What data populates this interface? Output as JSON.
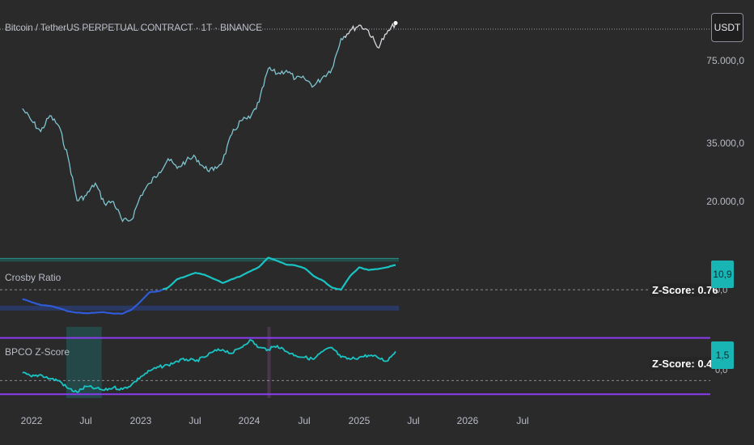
{
  "header": {
    "title": "Bitcoin / TetherUS PERPETUAL CONTRACT · 1T · BINANCE",
    "currency_button": "USDT"
  },
  "price_axis": {
    "labels": [
      "75.000,0",
      "35.000,0",
      "20.000,0"
    ]
  },
  "pane_crosby": {
    "label": "Crosby Ratio",
    "zscore_text": "Z-Score: 0.76",
    "badge_value": "10,9",
    "badge_sub": "0,0"
  },
  "pane_bpco": {
    "label": "BPCO Z-Score",
    "zscore_text": "Z-Score: 0.43",
    "badge_value": "1,5",
    "badge_sub": "0,0"
  },
  "time_axis": {
    "labels": [
      "2022",
      "Jul",
      "2023",
      "Jul",
      "2024",
      "Jul",
      "2025",
      "Jul",
      "2026",
      "Jul"
    ]
  },
  "colors": {
    "background": "#2a2a2a",
    "price_line": "#7ec4cf",
    "price_line_recent": "#d6d8de",
    "crosby_line": "#19c4c4",
    "crosby_line_low": "#2f5bd8",
    "bpco_line": "#19c4c4",
    "band_line": "#8a3cf0",
    "shade": "#1f5f5f"
  },
  "chart_data": [
    {
      "type": "line",
      "name": "price",
      "title": "Bitcoin / TetherUS PERPETUAL CONTRACT · 1T · BINANCE",
      "yscale": "log",
      "yticks": [
        75000,
        35000,
        20000
      ],
      "x": [
        "2021-12",
        "2022-01",
        "2022-02",
        "2022-03",
        "2022-04",
        "2022-05",
        "2022-06",
        "2022-07",
        "2022-08",
        "2022-09",
        "2022-10",
        "2022-11",
        "2022-12",
        "2023-01",
        "2023-02",
        "2023-03",
        "2023-04",
        "2023-05",
        "2023-06",
        "2023-07",
        "2023-08",
        "2023-09",
        "2023-10",
        "2023-11",
        "2023-12",
        "2024-01",
        "2024-02",
        "2024-03",
        "2024-04",
        "2024-05",
        "2024-06",
        "2024-07",
        "2024-08",
        "2024-09",
        "2024-10",
        "2024-11",
        "2024-12",
        "2025-01",
        "2025-02",
        "2025-03",
        "2025-04",
        "2025-05"
      ],
      "values": [
        47000,
        42000,
        38000,
        44000,
        40000,
        30000,
        20000,
        21000,
        23500,
        19500,
        19800,
        16500,
        16800,
        21000,
        23500,
        26000,
        29500,
        27000,
        29000,
        30000,
        27000,
        26500,
        29000,
        37000,
        42000,
        43000,
        50000,
        68000,
        65000,
        67000,
        62000,
        62000,
        58000,
        63000,
        68000,
        90000,
        97000,
        102000,
        97000,
        83000,
        94000,
        104000
      ]
    },
    {
      "type": "line",
      "name": "Crosby Ratio",
      "x": [
        "2021-12",
        "2022-01",
        "2022-02",
        "2022-03",
        "2022-04",
        "2022-05",
        "2022-06",
        "2022-07",
        "2022-08",
        "2022-09",
        "2022-10",
        "2022-11",
        "2022-12",
        "2023-01",
        "2023-02",
        "2023-03",
        "2023-04",
        "2023-05",
        "2023-06",
        "2023-07",
        "2023-08",
        "2023-09",
        "2023-10",
        "2023-11",
        "2023-12",
        "2024-01",
        "2024-02",
        "2024-03",
        "2024-04",
        "2024-05",
        "2024-06",
        "2024-07",
        "2024-08",
        "2024-09",
        "2024-10",
        "2024-11",
        "2024-12",
        "2025-01",
        "2025-02",
        "2025-03",
        "2025-04",
        "2025-05"
      ],
      "values": [
        3.5,
        2.8,
        2.2,
        2.0,
        1.5,
        0.8,
        0.5,
        0.4,
        0.5,
        0.6,
        0.3,
        0.3,
        1.2,
        3.0,
        5.0,
        5.2,
        6.0,
        7.8,
        8.5,
        9.2,
        8.8,
        7.9,
        7.0,
        7.8,
        8.5,
        9.5,
        10.5,
        12.5,
        11.8,
        11.0,
        10.8,
        10.2,
        8.5,
        7.5,
        6.0,
        5.5,
        8.5,
        10.4,
        9.8,
        10.0,
        10.4,
        10.9
      ],
      "ylim": [
        -1,
        14
      ],
      "bands": [
        12.0,
        1.5
      ],
      "midline": 5.5
    },
    {
      "type": "line",
      "name": "BPCO Z-Score",
      "x": [
        "2021-12",
        "2022-01",
        "2022-02",
        "2022-03",
        "2022-04",
        "2022-05",
        "2022-06",
        "2022-07",
        "2022-08",
        "2022-09",
        "2022-10",
        "2022-11",
        "2022-12",
        "2023-01",
        "2023-02",
        "2023-03",
        "2023-04",
        "2023-05",
        "2023-06",
        "2023-07",
        "2023-08",
        "2023-09",
        "2023-10",
        "2023-11",
        "2023-12",
        "2024-01",
        "2024-02",
        "2024-03",
        "2024-04",
        "2024-05",
        "2024-06",
        "2024-07",
        "2024-08",
        "2024-09",
        "2024-10",
        "2024-11",
        "2024-12",
        "2025-01",
        "2025-02",
        "2025-03",
        "2025-04",
        "2025-05"
      ],
      "values": [
        0.4,
        0.2,
        0.3,
        0.1,
        0.0,
        -0.4,
        -0.6,
        -0.3,
        -0.4,
        -0.5,
        -0.35,
        -0.45,
        -0.2,
        0.2,
        0.5,
        0.7,
        0.8,
        1.0,
        1.1,
        1.0,
        1.2,
        1.5,
        1.6,
        1.4,
        1.7,
        2.1,
        1.7,
        1.6,
        1.8,
        1.5,
        1.3,
        1.2,
        1.1,
        1.5,
        1.7,
        1.2,
        1.1,
        1.2,
        1.3,
        1.2,
        1.0,
        1.5
      ],
      "ylim": [
        -0.9,
        2.6
      ],
      "bands": [
        2.2,
        -0.2
      ],
      "midline": 0.0
    }
  ]
}
